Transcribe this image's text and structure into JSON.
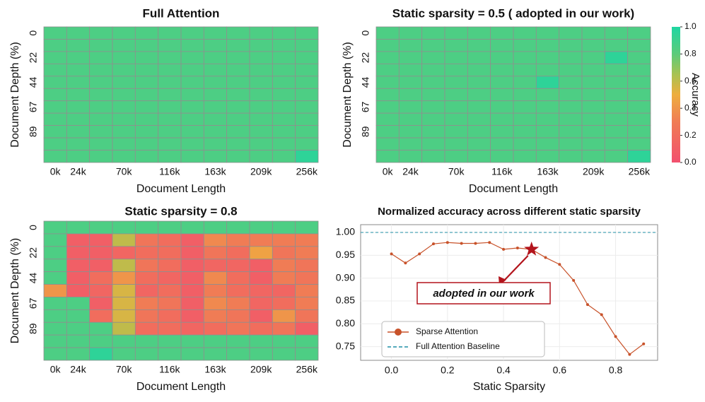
{
  "chart_data": [
    {
      "type": "heatmap",
      "title": "Full Attention",
      "x_label": "Document Length",
      "y_label": "Document Depth (%)",
      "columns": [
        "0k",
        "24k",
        null,
        "70k",
        null,
        "116k",
        null,
        "163k",
        null,
        "209k",
        null,
        "256k"
      ],
      "rows": [
        "0",
        null,
        "22",
        null,
        "44",
        null,
        "67",
        null,
        "89",
        null,
        null
      ],
      "values": [
        [
          0.85,
          0.85,
          0.85,
          0.85,
          0.85,
          0.85,
          0.85,
          0.85,
          0.85,
          0.85,
          0.85,
          0.85
        ],
        [
          0.85,
          0.85,
          0.85,
          0.85,
          0.85,
          0.85,
          0.85,
          0.85,
          0.85,
          0.85,
          0.85,
          0.85
        ],
        [
          0.85,
          0.85,
          0.85,
          0.85,
          0.85,
          0.85,
          0.85,
          0.85,
          0.85,
          0.85,
          0.85,
          0.85
        ],
        [
          0.85,
          0.85,
          0.85,
          0.85,
          0.85,
          0.85,
          0.85,
          0.85,
          0.85,
          0.85,
          0.85,
          0.85
        ],
        [
          0.85,
          0.85,
          0.85,
          0.85,
          0.85,
          0.85,
          0.85,
          0.85,
          0.85,
          0.85,
          0.85,
          0.85
        ],
        [
          0.85,
          0.85,
          0.85,
          0.85,
          0.85,
          0.85,
          0.85,
          0.85,
          0.85,
          0.85,
          0.85,
          0.85
        ],
        [
          0.85,
          0.85,
          0.85,
          0.85,
          0.85,
          0.85,
          0.85,
          0.85,
          0.85,
          0.85,
          0.85,
          0.85
        ],
        [
          0.85,
          0.85,
          0.85,
          0.85,
          0.85,
          0.85,
          0.85,
          0.85,
          0.85,
          0.85,
          0.85,
          0.85
        ],
        [
          0.85,
          0.85,
          0.85,
          0.85,
          0.85,
          0.85,
          0.85,
          0.85,
          0.85,
          0.85,
          0.85,
          0.85
        ],
        [
          0.85,
          0.85,
          0.85,
          0.85,
          0.85,
          0.85,
          0.85,
          0.85,
          0.85,
          0.85,
          0.85,
          0.85
        ],
        [
          0.85,
          0.85,
          0.85,
          0.85,
          0.85,
          0.85,
          0.85,
          0.85,
          0.85,
          0.85,
          0.85,
          0.95
        ]
      ]
    },
    {
      "type": "heatmap",
      "title": "Static sparsity = 0.5 ( adopted in our work)",
      "x_label": "Document Length",
      "y_label": "Document Depth (%)",
      "columns": [
        "0k",
        "24k",
        null,
        "70k",
        null,
        "116k",
        null,
        "163k",
        null,
        "209k",
        null,
        "256k"
      ],
      "rows": [
        "0",
        null,
        "22",
        null,
        "44",
        null,
        "67",
        null,
        "89",
        null,
        null
      ],
      "values": [
        [
          0.85,
          0.85,
          0.85,
          0.85,
          0.85,
          0.85,
          0.85,
          0.85,
          0.85,
          0.85,
          0.85,
          0.85
        ],
        [
          0.85,
          0.85,
          0.85,
          0.85,
          0.85,
          0.85,
          0.85,
          0.85,
          0.85,
          0.85,
          0.85,
          0.85
        ],
        [
          0.85,
          0.85,
          0.85,
          0.85,
          0.85,
          0.85,
          0.85,
          0.85,
          0.85,
          0.85,
          0.95,
          0.85
        ],
        [
          0.85,
          0.85,
          0.85,
          0.85,
          0.85,
          0.85,
          0.85,
          0.85,
          0.85,
          0.85,
          0.85,
          0.85
        ],
        [
          0.85,
          0.85,
          0.85,
          0.85,
          0.85,
          0.85,
          0.85,
          0.95,
          0.85,
          0.85,
          0.85,
          0.85
        ],
        [
          0.85,
          0.85,
          0.85,
          0.85,
          0.85,
          0.85,
          0.85,
          0.85,
          0.85,
          0.85,
          0.85,
          0.85
        ],
        [
          0.85,
          0.85,
          0.85,
          0.85,
          0.85,
          0.85,
          0.85,
          0.85,
          0.85,
          0.85,
          0.85,
          0.85
        ],
        [
          0.85,
          0.85,
          0.85,
          0.85,
          0.85,
          0.85,
          0.85,
          0.85,
          0.85,
          0.85,
          0.85,
          0.85
        ],
        [
          0.85,
          0.85,
          0.85,
          0.85,
          0.85,
          0.85,
          0.85,
          0.85,
          0.85,
          0.85,
          0.85,
          0.85
        ],
        [
          0.85,
          0.85,
          0.85,
          0.85,
          0.85,
          0.85,
          0.85,
          0.85,
          0.85,
          0.85,
          0.85,
          0.85
        ],
        [
          0.85,
          0.85,
          0.85,
          0.85,
          0.85,
          0.85,
          0.85,
          0.85,
          0.85,
          0.85,
          0.85,
          0.95
        ]
      ],
      "colorbar": {
        "label": "Accuracy",
        "lim": [
          0,
          1
        ],
        "ticks": [
          {
            "value": 0,
            "label": "0.0"
          },
          0.2,
          0.4,
          0.6,
          0.8,
          {
            "value": 1,
            "label": "1.0"
          }
        ],
        "colorscale": [
          [
            0,
            "#f2506e"
          ],
          [
            0.3,
            "#f07c55"
          ],
          [
            0.5,
            "#eeae3e"
          ],
          [
            0.65,
            "#a8c252"
          ],
          [
            0.8,
            "#5ccb7a"
          ],
          [
            1,
            "#1fd6a2"
          ]
        ]
      }
    },
    {
      "type": "heatmap",
      "title": "Static sparsity = 0.8",
      "x_label": "Document Length",
      "y_label": "Document Depth (%)",
      "columns": [
        "0k",
        "24k",
        null,
        "70k",
        null,
        "116k",
        null,
        "163k",
        null,
        "209k",
        null,
        "256k"
      ],
      "rows": [
        "0",
        null,
        "22",
        null,
        "44",
        null,
        "67",
        null,
        "89",
        null,
        null
      ],
      "values": [
        [
          0.85,
          0.85,
          0.85,
          0.85,
          0.85,
          0.85,
          0.85,
          0.85,
          0.85,
          0.85,
          0.85,
          0.85
        ],
        [
          0.85,
          0.1,
          0.1,
          0.6,
          0.25,
          0.2,
          0.1,
          0.35,
          0.3,
          0.3,
          0.3,
          0.3
        ],
        [
          0.85,
          0.1,
          0.1,
          0.15,
          0.2,
          0.2,
          0.1,
          0.25,
          0.2,
          0.45,
          0.25,
          0.3
        ],
        [
          0.85,
          0.1,
          0.1,
          0.6,
          0.25,
          0.2,
          0.1,
          0.15,
          0.15,
          0.1,
          0.3,
          0.25
        ],
        [
          0.85,
          0.1,
          0.2,
          0.4,
          0.2,
          0.15,
          0.1,
          0.35,
          0.2,
          0.1,
          0.3,
          0.25
        ],
        [
          0.4,
          0.1,
          0.15,
          0.55,
          0.15,
          0.2,
          0.1,
          0.3,
          0.2,
          0.15,
          0.15,
          0.3
        ],
        [
          0.85,
          0.85,
          0.1,
          0.55,
          0.3,
          0.25,
          0.1,
          0.35,
          0.3,
          0.15,
          0.2,
          0.3
        ],
        [
          0.85,
          0.85,
          0.2,
          0.55,
          0.25,
          0.2,
          0.1,
          0.3,
          0.25,
          0.1,
          0.4,
          0.25
        ],
        [
          0.85,
          0.85,
          0.85,
          0.6,
          0.2,
          0.2,
          0.15,
          0.2,
          0.25,
          0.2,
          0.25,
          0.1
        ],
        [
          0.85,
          0.85,
          0.85,
          0.85,
          0.85,
          0.85,
          0.85,
          0.85,
          0.85,
          0.85,
          0.85,
          0.85
        ],
        [
          0.85,
          0.85,
          0.95,
          0.85,
          0.85,
          0.85,
          0.85,
          0.85,
          0.85,
          0.85,
          0.85,
          0.85
        ]
      ]
    },
    {
      "type": "line",
      "title": "Normalized accuracy across different static sparsity",
      "x_label": "Static Sparsity",
      "x": [
        0,
        0.05,
        0.1,
        0.15,
        0.2,
        0.25,
        0.3,
        0.35,
        0.4,
        0.45,
        0.5,
        0.55,
        0.6,
        0.65,
        0.7,
        0.75,
        0.8,
        0.85,
        0.9
      ],
      "series": [
        {
          "name": "Sparse Attention",
          "color": "#c8522a",
          "values": [
            0.953,
            0.933,
            0.953,
            0.975,
            0.978,
            0.976,
            0.976,
            0.978,
            0.963,
            0.966,
            0.963,
            0.945,
            0.93,
            0.895,
            0.842,
            0.82,
            0.772,
            0.733,
            0.756
          ]
        }
      ],
      "baseline": {
        "name": "Full Attention Baseline",
        "value": 1,
        "color": "#1f8fa6"
      },
      "annotation": {
        "text": "adopted in our work",
        "target_index": 10,
        "color": "#b3141c"
      },
      "xlim": [
        -0.11,
        0.95
      ],
      "ylim": [
        0.72,
        1.017
      ],
      "xticks": [
        {
          "value": 0,
          "label": "0.0"
        },
        0.2,
        0.4,
        0.6,
        0.8
      ],
      "yticks": [
        0.75,
        {
          "value": 0.8,
          "label": "0.80"
        },
        0.85,
        {
          "value": 0.9,
          "label": "0.90"
        },
        0.95,
        {
          "value": 1,
          "label": "1.00"
        }
      ],
      "grid": true,
      "legend": "lower left"
    }
  ]
}
